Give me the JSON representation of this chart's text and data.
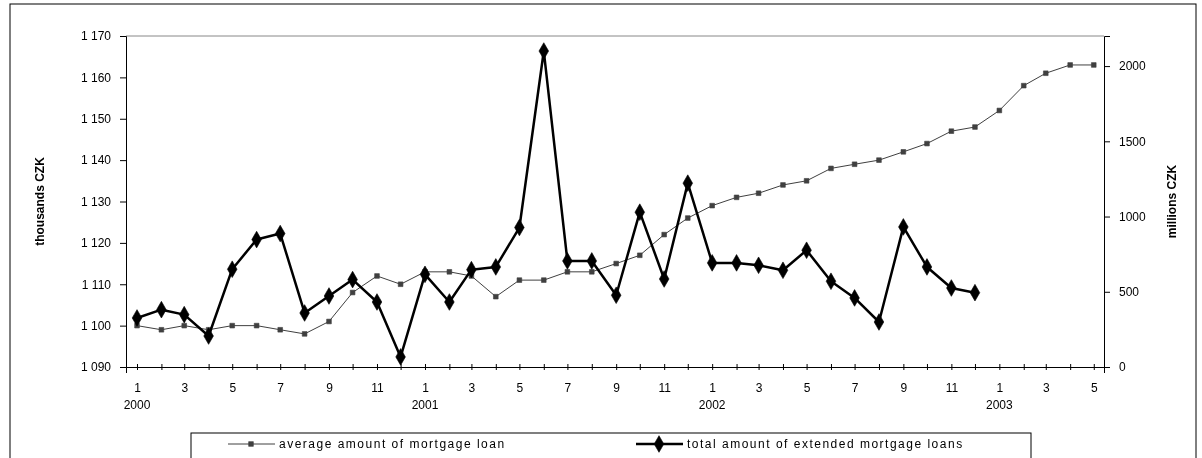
{
  "chart_data": {
    "type": "line",
    "xlabel": null,
    "ylabel": "thousands CZK",
    "y2label": "millions CZK",
    "x": [
      "2000-01",
      "2000-02",
      "2000-03",
      "2000-04",
      "2000-05",
      "2000-06",
      "2000-07",
      "2000-08",
      "2000-09",
      "2000-10",
      "2000-11",
      "2000-12",
      "2001-01",
      "2001-02",
      "2001-03",
      "2001-04",
      "2001-05",
      "2001-06",
      "2001-07",
      "2001-08",
      "2001-09",
      "2001-10",
      "2001-11",
      "2001-12",
      "2002-01",
      "2002-02",
      "2002-03",
      "2002-04",
      "2002-05",
      "2002-06",
      "2002-07",
      "2002-08",
      "2002-09",
      "2002-10",
      "2002-11",
      "2002-12",
      "2003-01",
      "2003-02",
      "2003-03",
      "2003-04",
      "2003-05"
    ],
    "series": [
      {
        "name": "average amount of mortgage loan",
        "color": "#404040",
        "marker": "square",
        "values": [
          1100,
          1099,
          1100,
          1099,
          1100,
          1100,
          1099,
          1098,
          1101,
          1108,
          1112,
          1110,
          1113,
          1113,
          1112,
          1107,
          1111,
          1111,
          1113,
          1113,
          1115,
          1117,
          1122,
          1126,
          1129,
          1131,
          1132,
          1134,
          1135,
          1138,
          1139,
          1140,
          1142,
          1144,
          1147,
          1148,
          1152,
          1158,
          1161,
          1163,
          1163
        ]
      },
      {
        "name": "total amount of extended mortgage loans",
        "color": "#000000",
        "marker": "diamond",
        "axis": "y2",
        "values": [
          326,
          381,
          348,
          206,
          650,
          847,
          887,
          359,
          472,
          581,
          432,
          67,
          616,
          432,
          647,
          665,
          927,
          2100,
          705,
          705,
          477,
          1029,
          585,
          1222,
          692,
          692,
          676,
          643,
          776,
          570,
          459,
          299,
          931,
          665,
          525,
          494,
          null,
          null,
          null,
          null,
          null
        ]
      }
    ],
    "xlim": [
      "1999-12-18",
      "2003-05-14"
    ],
    "xticks": [
      {
        "value": "2000-01",
        "label": "1"
      },
      {
        "value": "2000-02",
        "label": null
      },
      {
        "value": "2000-03",
        "label": "3"
      },
      {
        "value": "2000-04",
        "label": null
      },
      {
        "value": "2000-05",
        "label": "5"
      },
      {
        "value": "2000-06",
        "label": null
      },
      {
        "value": "2000-07",
        "label": "7"
      },
      {
        "value": "2000-08",
        "label": null
      },
      {
        "value": "2000-09",
        "label": "9"
      },
      {
        "value": "2000-10",
        "label": null
      },
      {
        "value": "2000-11",
        "label": "11"
      },
      {
        "value": "2000-12",
        "label": null
      },
      {
        "value": "2001-01",
        "label": "1"
      },
      {
        "value": "2001-02",
        "label": null
      },
      {
        "value": "2001-03",
        "label": "3"
      },
      {
        "value": "2001-04",
        "label": null
      },
      {
        "value": "2001-05",
        "label": "5"
      },
      {
        "value": "2001-06",
        "label": null
      },
      {
        "value": "2001-07",
        "label": "7"
      },
      {
        "value": "2001-08",
        "label": null
      },
      {
        "value": "2001-09",
        "label": "9"
      },
      {
        "value": "2001-10",
        "label": null
      },
      {
        "value": "2001-11",
        "label": "11"
      },
      {
        "value": "2001-12",
        "label": null
      },
      {
        "value": "2002-01",
        "label": "1"
      },
      {
        "value": "2002-02",
        "label": null
      },
      {
        "value": "2002-03",
        "label": "3"
      },
      {
        "value": "2002-04",
        "label": null
      },
      {
        "value": "2002-05",
        "label": "5"
      },
      {
        "value": "2002-06",
        "label": null
      },
      {
        "value": "2002-07",
        "label": "7"
      },
      {
        "value": "2002-08",
        "label": null
      },
      {
        "value": "2002-09",
        "label": "9"
      },
      {
        "value": "2002-10",
        "label": null
      },
      {
        "value": "2002-11",
        "label": "11"
      },
      {
        "value": "2002-12",
        "label": null
      },
      {
        "value": "2003-01",
        "label": "1"
      },
      {
        "value": "2003-02",
        "label": null
      },
      {
        "value": "2003-03",
        "label": "3"
      },
      {
        "value": "2003-04",
        "label": null
      },
      {
        "value": "2003-05",
        "label": "5"
      }
    ],
    "ylim": [
      1090,
      1170
    ],
    "yticks": [
      {
        "value": 1090,
        "label": "1 090"
      },
      {
        "value": 1100,
        "label": "1 100"
      },
      {
        "value": 1110,
        "label": "1 110"
      },
      {
        "value": 1120,
        "label": "1 120"
      },
      {
        "value": 1130,
        "label": "1 130"
      },
      {
        "value": 1140,
        "label": "1 140"
      },
      {
        "value": 1150,
        "label": "1 150"
      },
      {
        "value": 1160,
        "label": "1 160"
      },
      {
        "value": 1170,
        "label": "1 170"
      }
    ],
    "y2lim": [
      0,
      2200
    ],
    "y2ticks": [
      0,
      500,
      1000,
      1500,
      2000
    ],
    "annotations": [
      "2000",
      "2001",
      "2002",
      "2003"
    ],
    "legend": "bottom",
    "grid": false,
    "line_style": "solid"
  }
}
